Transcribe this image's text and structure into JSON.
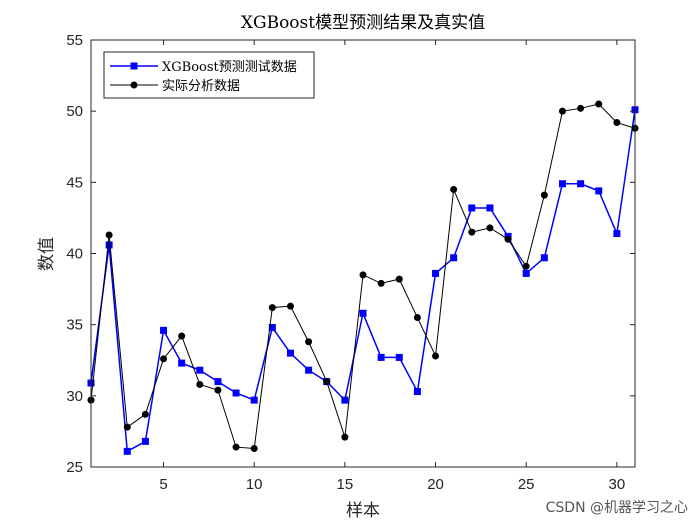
{
  "watermark": "CSDN @机器学习之心",
  "colors": {
    "pred": "#0000ff",
    "actual": "#000000",
    "axis": "#262626"
  },
  "chart_data": {
    "type": "line",
    "title": "XGBoost模型预测结果及真实值",
    "xlabel": "样本",
    "ylabel": "数值",
    "xlim": [
      1,
      31
    ],
    "ylim": [
      25,
      55
    ],
    "xticks": [
      5,
      10,
      15,
      20,
      25,
      30
    ],
    "yticks": [
      25,
      30,
      35,
      40,
      45,
      50,
      55
    ],
    "legend_position": "top-left",
    "x": [
      1,
      2,
      3,
      4,
      5,
      6,
      7,
      8,
      9,
      10,
      11,
      12,
      13,
      14,
      15,
      16,
      17,
      18,
      19,
      20,
      21,
      22,
      23,
      24,
      25,
      26,
      27,
      28,
      29,
      30,
      31
    ],
    "series": [
      {
        "name": "XGBoost预测测试数据",
        "marker": "square",
        "color": "#0000ff",
        "values": [
          30.9,
          40.6,
          26.1,
          26.8,
          34.6,
          32.3,
          31.8,
          31.0,
          30.2,
          29.7,
          34.8,
          33.0,
          31.8,
          31.0,
          29.7,
          35.8,
          32.7,
          32.7,
          30.3,
          38.6,
          39.7,
          43.2,
          43.2,
          41.2,
          38.6,
          39.7,
          44.9,
          44.9,
          44.4,
          41.4,
          50.1
        ]
      },
      {
        "name": "实际分析数据",
        "marker": "circle",
        "color": "#000000",
        "values": [
          29.7,
          41.3,
          27.8,
          28.7,
          32.6,
          34.2,
          30.8,
          30.4,
          26.4,
          26.3,
          36.2,
          36.3,
          33.8,
          31.0,
          27.1,
          38.5,
          37.9,
          38.2,
          35.5,
          32.8,
          44.5,
          41.5,
          41.8,
          41.0,
          39.1,
          44.1,
          50.0,
          50.2,
          50.5,
          49.2,
          48.8
        ]
      }
    ]
  }
}
